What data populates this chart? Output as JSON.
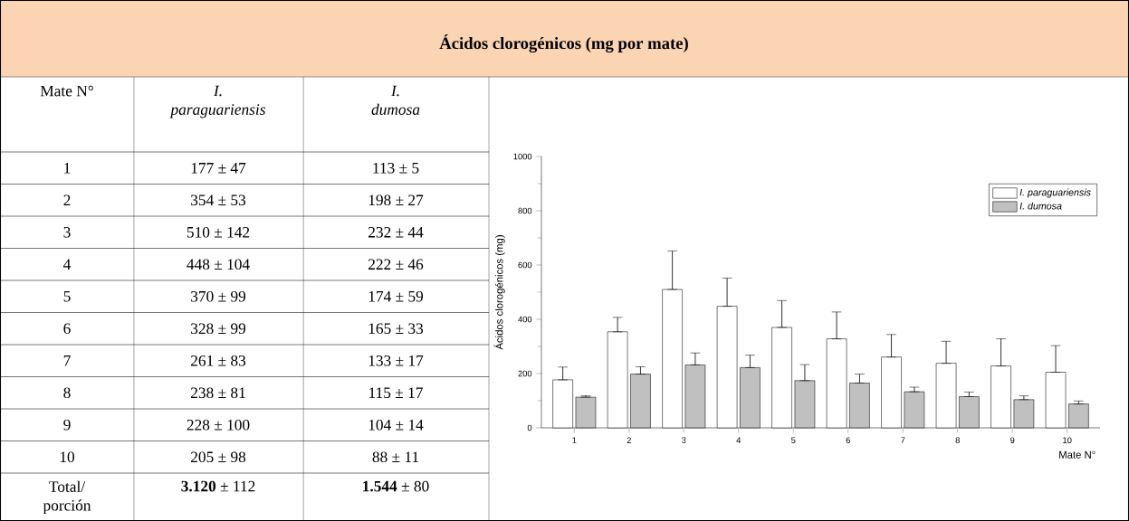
{
  "chart_data": {
    "type": "bar",
    "title": "Ácidos clorogénicos (mg por mate)",
    "xlabel": "Mate N°",
    "ylabel": "Ácidos clorogénicos (mg)",
    "categories": [
      "1",
      "2",
      "3",
      "4",
      "5",
      "6",
      "7",
      "8",
      "9",
      "10"
    ],
    "series": [
      {
        "name": "I. paraguariensis",
        "color": "#ffffff",
        "values": [
          177,
          354,
          510,
          448,
          370,
          328,
          261,
          238,
          228,
          205
        ],
        "errors": [
          [
            177,
            224
          ],
          [
            354,
            407
          ],
          [
            510,
            652
          ],
          [
            448,
            552
          ],
          [
            370,
            469
          ],
          [
            328,
            427
          ],
          [
            261,
            344
          ],
          [
            238,
            319
          ],
          [
            228,
            328
          ],
          [
            205,
            303
          ]
        ]
      },
      {
        "name": "I. dumosa",
        "color": "#c0c0c0",
        "values": [
          113,
          198,
          232,
          222,
          174,
          165,
          133,
          115,
          104,
          88
        ],
        "errors": [
          [
            113,
            118
          ],
          [
            198,
            225
          ],
          [
            232,
            276
          ],
          [
            222,
            268
          ],
          [
            174,
            233
          ],
          [
            165,
            198
          ],
          [
            133,
            150
          ],
          [
            115,
            132
          ],
          [
            104,
            118
          ],
          [
            88,
            99
          ]
        ]
      }
    ],
    "ylim": [
      0,
      1000
    ],
    "yticks": [
      0,
      200,
      400,
      600,
      800,
      1000
    ],
    "legend": "top right",
    "annotations": [
      "177 ± 47",
      "113 ± 5",
      "354 ± 53",
      "198 ± 27",
      "510 ± 142",
      "232 ± 44",
      "448 ± 104",
      "222 ± 46",
      "370 ± 99",
      "174 ± 59",
      "328 ± 99",
      "165 ± 33",
      "261 ± 83",
      "133 ± 17",
      "238 ± 81",
      "115 ± 17",
      "228 ± 100",
      "104 ± 14",
      "205 ± 98",
      "88 ± 11",
      "Total/ porción",
      "**3.120** ± 112",
      "**1.544** ± 80"
    ]
  }
}
